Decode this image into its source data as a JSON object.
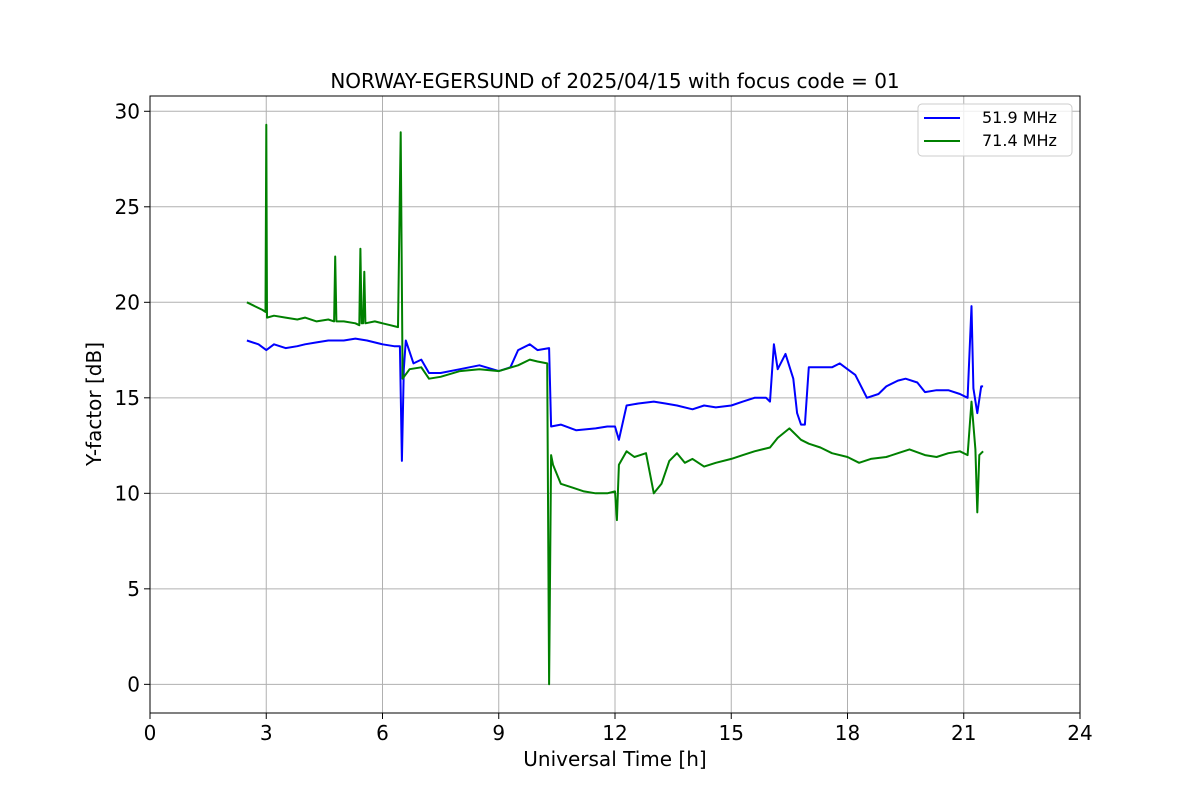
{
  "chart_data": {
    "type": "line",
    "title": "NORWAY-EGERSUND of 2025/04/15 with focus code = 01",
    "xlabel": "Universal Time [h]",
    "ylabel": "Y-factor [dB]",
    "xlim": [
      0,
      24
    ],
    "ylim": [
      -1.5,
      30.8
    ],
    "xticks": [
      0,
      3,
      6,
      9,
      12,
      15,
      18,
      21,
      24
    ],
    "yticks": [
      0,
      5,
      10,
      15,
      20,
      25,
      30
    ],
    "grid": true,
    "legend_position": "top-right",
    "series": [
      {
        "name": "51.9 MHz",
        "color": "#0000ff",
        "points": [
          [
            2.5,
            18.0
          ],
          [
            2.8,
            17.8
          ],
          [
            3.0,
            17.5
          ],
          [
            3.2,
            17.8
          ],
          [
            3.5,
            17.6
          ],
          [
            3.8,
            17.7
          ],
          [
            4.0,
            17.8
          ],
          [
            4.3,
            17.9
          ],
          [
            4.6,
            18.0
          ],
          [
            5.0,
            18.0
          ],
          [
            5.3,
            18.1
          ],
          [
            5.6,
            18.0
          ],
          [
            6.0,
            17.8
          ],
          [
            6.3,
            17.7
          ],
          [
            6.45,
            17.7
          ],
          [
            6.5,
            11.7
          ],
          [
            6.55,
            16.5
          ],
          [
            6.6,
            18.0
          ],
          [
            6.8,
            16.8
          ],
          [
            7.0,
            17.0
          ],
          [
            7.2,
            16.3
          ],
          [
            7.5,
            16.3
          ],
          [
            8.0,
            16.5
          ],
          [
            8.5,
            16.7
          ],
          [
            9.0,
            16.4
          ],
          [
            9.3,
            16.6
          ],
          [
            9.5,
            17.5
          ],
          [
            9.8,
            17.8
          ],
          [
            10.0,
            17.5
          ],
          [
            10.3,
            17.6
          ],
          [
            10.35,
            13.5
          ],
          [
            10.6,
            13.6
          ],
          [
            11.0,
            13.3
          ],
          [
            11.5,
            13.4
          ],
          [
            11.8,
            13.5
          ],
          [
            12.0,
            13.5
          ],
          [
            12.1,
            12.8
          ],
          [
            12.3,
            14.6
          ],
          [
            12.6,
            14.7
          ],
          [
            13.0,
            14.8
          ],
          [
            13.3,
            14.7
          ],
          [
            13.6,
            14.6
          ],
          [
            14.0,
            14.4
          ],
          [
            14.3,
            14.6
          ],
          [
            14.6,
            14.5
          ],
          [
            15.0,
            14.6
          ],
          [
            15.3,
            14.8
          ],
          [
            15.6,
            15.0
          ],
          [
            15.9,
            15.0
          ],
          [
            16.0,
            14.8
          ],
          [
            16.1,
            17.8
          ],
          [
            16.2,
            16.5
          ],
          [
            16.4,
            17.3
          ],
          [
            16.6,
            16.0
          ],
          [
            16.7,
            14.2
          ],
          [
            16.8,
            13.6
          ],
          [
            16.9,
            13.6
          ],
          [
            17.0,
            16.6
          ],
          [
            17.3,
            16.6
          ],
          [
            17.6,
            16.6
          ],
          [
            17.8,
            16.8
          ],
          [
            18.0,
            16.5
          ],
          [
            18.2,
            16.2
          ],
          [
            18.5,
            15.0
          ],
          [
            18.8,
            15.2
          ],
          [
            19.0,
            15.6
          ],
          [
            19.3,
            15.9
          ],
          [
            19.5,
            16.0
          ],
          [
            19.8,
            15.8
          ],
          [
            20.0,
            15.3
          ],
          [
            20.3,
            15.4
          ],
          [
            20.6,
            15.4
          ],
          [
            20.9,
            15.2
          ],
          [
            21.1,
            15.0
          ],
          [
            21.2,
            19.8
          ],
          [
            21.25,
            15.5
          ],
          [
            21.35,
            14.2
          ],
          [
            21.45,
            15.6
          ],
          [
            21.5,
            15.6
          ]
        ]
      },
      {
        "name": "71.4 MHz",
        "color": "#008000",
        "points": [
          [
            2.5,
            20.0
          ],
          [
            2.7,
            19.8
          ],
          [
            2.9,
            19.6
          ],
          [
            2.98,
            19.5
          ],
          [
            3.0,
            29.3
          ],
          [
            3.02,
            19.2
          ],
          [
            3.2,
            19.3
          ],
          [
            3.5,
            19.2
          ],
          [
            3.8,
            19.1
          ],
          [
            4.0,
            19.2
          ],
          [
            4.3,
            19.0
          ],
          [
            4.6,
            19.1
          ],
          [
            4.75,
            19.0
          ],
          [
            4.78,
            22.4
          ],
          [
            4.81,
            19.0
          ],
          [
            5.0,
            19.0
          ],
          [
            5.3,
            18.9
          ],
          [
            5.4,
            18.8
          ],
          [
            5.43,
            22.8
          ],
          [
            5.46,
            18.9
          ],
          [
            5.5,
            18.9
          ],
          [
            5.53,
            21.6
          ],
          [
            5.56,
            18.9
          ],
          [
            5.8,
            19.0
          ],
          [
            6.0,
            18.9
          ],
          [
            6.2,
            18.8
          ],
          [
            6.4,
            18.7
          ],
          [
            6.47,
            28.9
          ],
          [
            6.52,
            16.0
          ],
          [
            6.7,
            16.5
          ],
          [
            7.0,
            16.6
          ],
          [
            7.2,
            16.0
          ],
          [
            7.5,
            16.1
          ],
          [
            8.0,
            16.4
          ],
          [
            8.5,
            16.5
          ],
          [
            9.0,
            16.4
          ],
          [
            9.5,
            16.7
          ],
          [
            9.8,
            17.0
          ],
          [
            10.0,
            16.9
          ],
          [
            10.25,
            16.8
          ],
          [
            10.3,
            0.0
          ],
          [
            10.35,
            12.0
          ],
          [
            10.4,
            11.5
          ],
          [
            10.6,
            10.5
          ],
          [
            10.9,
            10.3
          ],
          [
            11.2,
            10.1
          ],
          [
            11.5,
            10.0
          ],
          [
            11.8,
            10.0
          ],
          [
            12.0,
            10.1
          ],
          [
            12.05,
            8.6
          ],
          [
            12.1,
            11.5
          ],
          [
            12.3,
            12.2
          ],
          [
            12.5,
            11.9
          ],
          [
            12.8,
            12.1
          ],
          [
            13.0,
            10.0
          ],
          [
            13.2,
            10.5
          ],
          [
            13.4,
            11.7
          ],
          [
            13.6,
            12.1
          ],
          [
            13.8,
            11.6
          ],
          [
            14.0,
            11.8
          ],
          [
            14.3,
            11.4
          ],
          [
            14.6,
            11.6
          ],
          [
            15.0,
            11.8
          ],
          [
            15.3,
            12.0
          ],
          [
            15.6,
            12.2
          ],
          [
            16.0,
            12.4
          ],
          [
            16.2,
            12.9
          ],
          [
            16.5,
            13.4
          ],
          [
            16.8,
            12.8
          ],
          [
            17.0,
            12.6
          ],
          [
            17.3,
            12.4
          ],
          [
            17.6,
            12.1
          ],
          [
            18.0,
            11.9
          ],
          [
            18.3,
            11.6
          ],
          [
            18.6,
            11.8
          ],
          [
            19.0,
            11.9
          ],
          [
            19.3,
            12.1
          ],
          [
            19.6,
            12.3
          ],
          [
            20.0,
            12.0
          ],
          [
            20.3,
            11.9
          ],
          [
            20.6,
            12.1
          ],
          [
            20.9,
            12.2
          ],
          [
            21.1,
            12.0
          ],
          [
            21.2,
            14.8
          ],
          [
            21.3,
            12.3
          ],
          [
            21.35,
            9.0
          ],
          [
            21.4,
            12.0
          ],
          [
            21.5,
            12.2
          ]
        ]
      }
    ]
  }
}
